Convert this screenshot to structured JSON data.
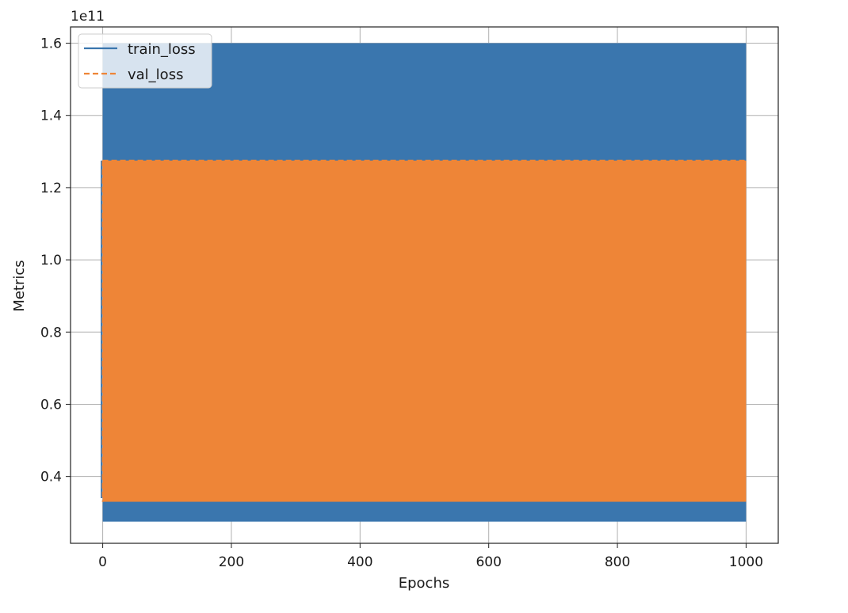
{
  "chart_data": {
    "type": "line",
    "title": "",
    "xlabel": "Epochs",
    "ylabel": "Metrics",
    "y_offset_label": "1e11",
    "y_scale": 100000000000.0,
    "xlim": [
      -50,
      1050
    ],
    "ylim": [
      0.215,
      1.645
    ],
    "x_ticks": [
      0,
      200,
      400,
      600,
      800,
      1000
    ],
    "x_tick_labels": [
      "0",
      "200",
      "400",
      "600",
      "800",
      "1000"
    ],
    "y_ticks": [
      0.4,
      0.6,
      0.8,
      1.0,
      1.2,
      1.4,
      1.6
    ],
    "y_tick_labels": [
      "0.4",
      "0.6",
      "0.8",
      "1.0",
      "1.2",
      "1.4",
      "1.6"
    ],
    "grid": true,
    "legend_position": "upper-left",
    "epochs": [
      0,
      1000
    ],
    "series": [
      {
        "name": "train_loss",
        "style": "solid",
        "color": "#3a76ae",
        "oscillating": true,
        "min": 0.275,
        "max": 1.6,
        "spike_at_start": 0.34
      },
      {
        "name": "val_loss",
        "style": "dashed",
        "color": "#ee8537",
        "oscillating": true,
        "min": 0.33,
        "max": 1.275
      }
    ]
  }
}
